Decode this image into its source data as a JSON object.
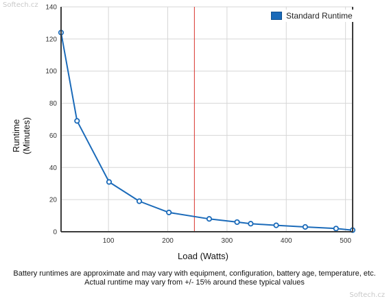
{
  "watermarks": {
    "top_left": "Softech.cz",
    "bottom_right": "Softech.cz"
  },
  "chart_data": {
    "type": "line",
    "title": "",
    "xlabel": "Load (Watts)",
    "ylabel_lines": [
      "Runtime",
      "(Minutes)"
    ],
    "xlim": [
      20,
      512
    ],
    "ylim": [
      0,
      140
    ],
    "x_ticks": [
      100,
      200,
      300,
      400,
      500
    ],
    "y_ticks": [
      0,
      20,
      40,
      60,
      80,
      100,
      120,
      140
    ],
    "grid": true,
    "legend_placement": "top-right",
    "series": [
      {
        "name": "Standard Runtime",
        "color": "#1a6ab9",
        "x": [
          20,
          47,
          101,
          152,
          202,
          270,
          317,
          340,
          383,
          432,
          484,
          512
        ],
        "y": [
          124,
          69,
          31,
          19,
          12,
          8,
          6,
          5,
          4,
          3,
          2,
          1
        ]
      }
    ],
    "reference_line": {
      "x": 245,
      "color": "#d9302a"
    }
  },
  "footnote": {
    "line1": "Battery runtimes are approximate and may vary with equipment, configuration, battery age, temperature, etc.",
    "line2": "Actual runtime may vary from +/- 15% around these typical values"
  }
}
